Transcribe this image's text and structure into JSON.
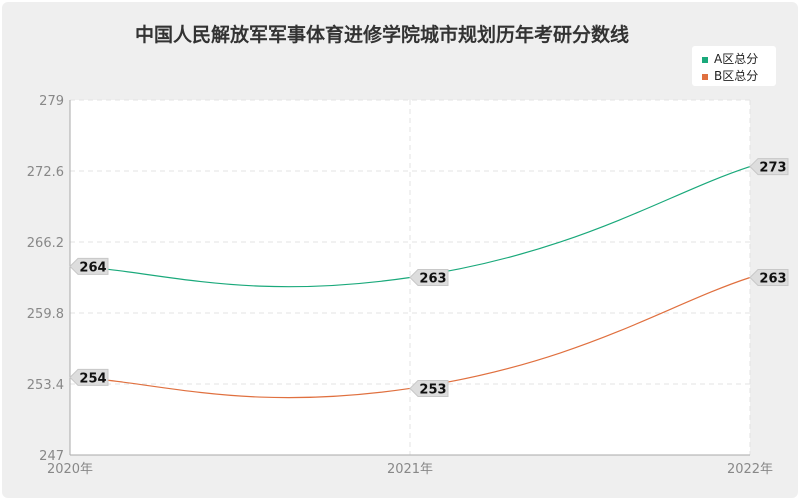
{
  "chart_data": {
    "type": "line",
    "title": "中国人民解放军军事体育进修学院城市规划历年考研分数线",
    "categories": [
      "2020年",
      "2021年",
      "2022年"
    ],
    "ylim": [
      247,
      279
    ],
    "yticks": [
      "247",
      "253.4",
      "259.8",
      "266.2",
      "272.6",
      "279"
    ],
    "grid": true,
    "legend_position": "top-right",
    "series": [
      {
        "name": "A区总分",
        "values": [
          264,
          263,
          273
        ],
        "color": "#1aa97b"
      },
      {
        "name": "B区总分",
        "values": [
          254,
          253,
          263
        ],
        "color": "#e0703f"
      }
    ]
  }
}
